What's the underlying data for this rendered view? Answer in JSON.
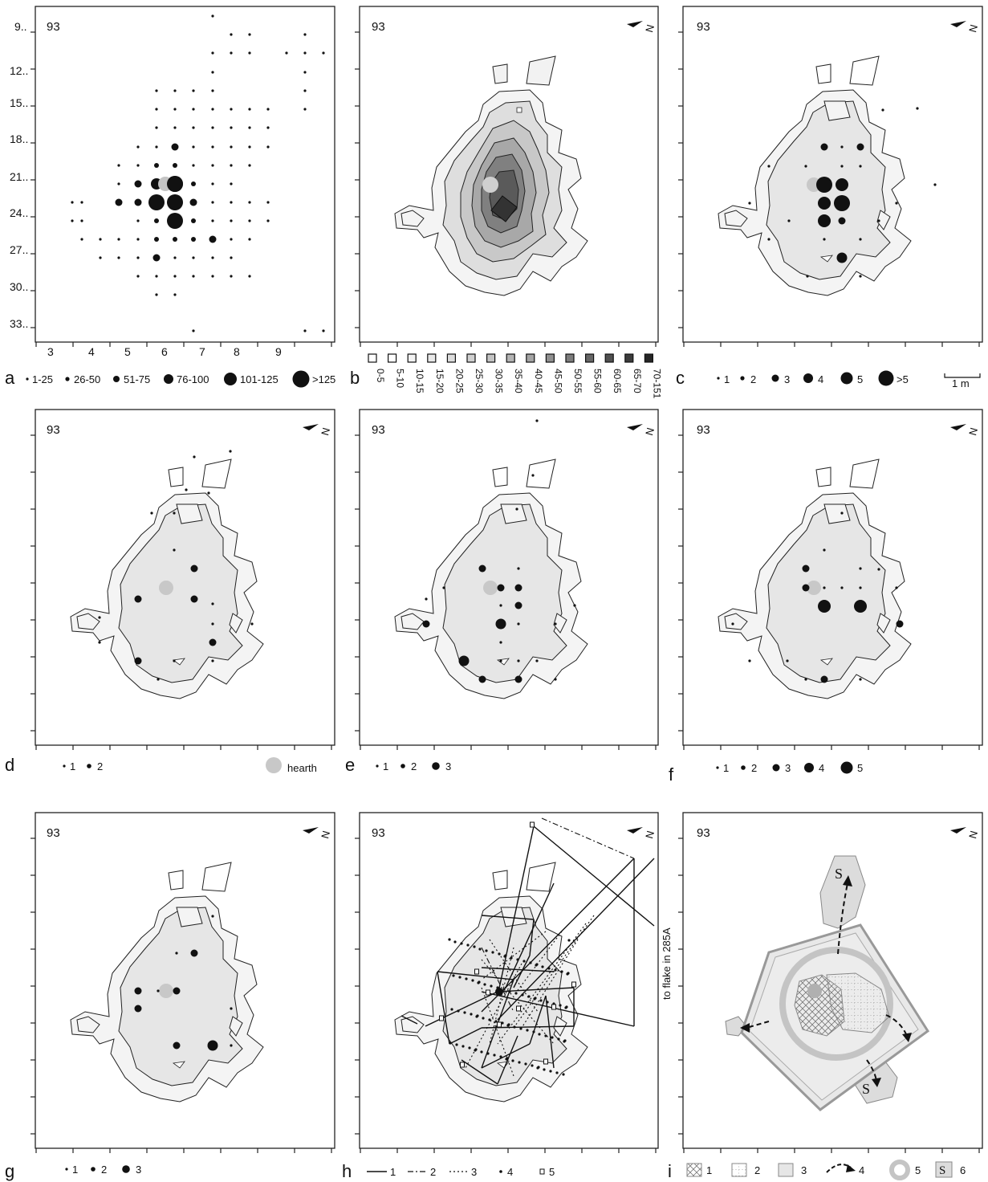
{
  "panel_number": "93",
  "panels": [
    {
      "id": "a",
      "letter": "a"
    },
    {
      "id": "b",
      "letter": "b"
    },
    {
      "id": "c",
      "letter": "c"
    },
    {
      "id": "d",
      "letter": "d"
    },
    {
      "id": "e",
      "letter": "e"
    },
    {
      "id": "f",
      "letter": "f"
    },
    {
      "id": "g",
      "letter": "g"
    },
    {
      "id": "h",
      "letter": "h"
    },
    {
      "id": "i",
      "letter": "i"
    }
  ],
  "axis_a": {
    "y_labels": [
      "9..",
      "12..",
      "15..",
      "18..",
      "21..",
      "24..",
      "27..",
      "30..",
      "33.."
    ],
    "x_labels": [
      "3",
      "4",
      "5",
      "6",
      "7",
      "8",
      "9"
    ]
  },
  "legend_a": [
    "1-25",
    "26-50",
    "51-75",
    "76-100",
    "101-125",
    ">125"
  ],
  "legend_b": [
    "0-5",
    "5-10",
    "10-15",
    "15-20",
    "20-25",
    "25-30",
    "30-35",
    "35-40",
    "40-45",
    "45-50",
    "50-55",
    "55-60",
    "60-65",
    "65-70",
    "70-151"
  ],
  "legend_c": [
    "1",
    "2",
    "3",
    "4",
    "5",
    ">5"
  ],
  "scale_bar_label": "1 m",
  "legend_d": [
    "1",
    "2"
  ],
  "hearth_label": "hearth",
  "legend_e": [
    "1",
    "2",
    "3"
  ],
  "legend_f": [
    "1",
    "2",
    "3",
    "4",
    "5"
  ],
  "legend_g": [
    "1",
    "2",
    "3"
  ],
  "legend_h": [
    "1",
    "2",
    "3",
    "4",
    "5"
  ],
  "legend_i": [
    "1",
    "2",
    "3",
    "4",
    "5",
    "6"
  ],
  "refit_note": "to flake in 285A",
  "s_label": "S",
  "north_symbol": "N"
}
